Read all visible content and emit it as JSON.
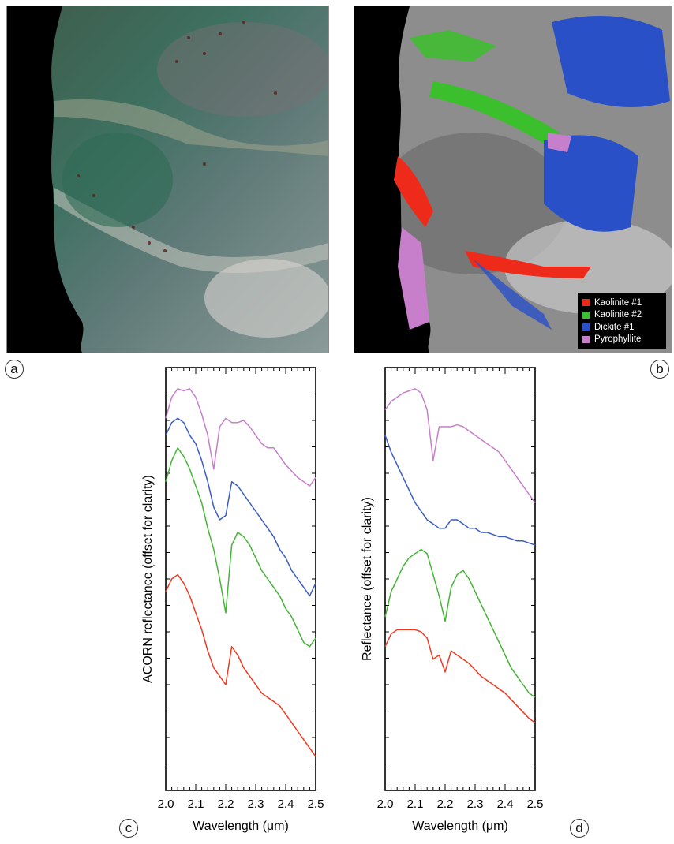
{
  "figure": {
    "panel_labels": [
      "a",
      "b",
      "c",
      "d"
    ],
    "legend": [
      {
        "label": "Kaolinite #1",
        "color": "#ee2a1b"
      },
      {
        "label": "Kaolinite #2",
        "color": "#3bbf2c"
      },
      {
        "label": "Dickite #1",
        "color": "#2a50c8"
      },
      {
        "label": "Pyrophyllite",
        "color": "#c77fcb"
      }
    ],
    "image_a": {
      "description_icon": "false-color-image"
    },
    "image_b": {
      "description_icon": "mineral-map-image"
    }
  },
  "chart_data": [
    {
      "type": "line",
      "panel": "c",
      "xlabel": "Wavelength (μm)",
      "ylabel": "ACORN reflectance (offset for clarity)",
      "xlim": [
        2.0,
        2.5
      ],
      "ylim": [
        0,
        100
      ],
      "x_ticks": [
        "2.0",
        "2.1",
        "2.2",
        "2.3",
        "2.4",
        "2.5"
      ],
      "grid": false,
      "series": [
        {
          "color": "#c77fcb",
          "x": [
            2.0,
            2.02,
            2.04,
            2.06,
            2.08,
            2.1,
            2.12,
            2.14,
            2.16,
            2.18,
            2.2,
            2.22,
            2.24,
            2.26,
            2.28,
            2.3,
            2.32,
            2.34,
            2.36,
            2.38,
            2.4,
            2.42,
            2.44,
            2.46,
            2.48,
            2.5
          ],
          "y": [
            88,
            93,
            95,
            94.5,
            95,
            93,
            89,
            84,
            76,
            86,
            88,
            87,
            87,
            87.5,
            86,
            84,
            82,
            81,
            81,
            79,
            77,
            75.5,
            74,
            73,
            72,
            74
          ]
        },
        {
          "color": "#3a5cc4",
          "x": [
            2.0,
            2.02,
            2.04,
            2.06,
            2.08,
            2.1,
            2.12,
            2.14,
            2.16,
            2.18,
            2.2,
            2.22,
            2.24,
            2.26,
            2.28,
            2.3,
            2.32,
            2.34,
            2.36,
            2.38,
            2.4,
            2.42,
            2.44,
            2.46,
            2.48,
            2.5
          ],
          "y": [
            84,
            87,
            88,
            87,
            84,
            82,
            78,
            73,
            67,
            64,
            65,
            73,
            72,
            70,
            68,
            66,
            64,
            62,
            60,
            57,
            55,
            52,
            50,
            48,
            46,
            49
          ]
        },
        {
          "color": "#44b536",
          "x": [
            2.0,
            2.02,
            2.04,
            2.06,
            2.08,
            2.1,
            2.12,
            2.14,
            2.16,
            2.18,
            2.2,
            2.22,
            2.24,
            2.26,
            2.28,
            2.3,
            2.32,
            2.34,
            2.36,
            2.38,
            2.4,
            2.42,
            2.44,
            2.46,
            2.48,
            2.5
          ],
          "y": [
            73,
            78,
            81,
            79,
            76,
            72,
            68,
            62,
            57,
            50,
            42,
            58,
            61,
            60,
            58,
            55,
            52,
            50,
            48,
            46,
            43,
            41,
            38,
            35,
            34,
            36
          ]
        },
        {
          "color": "#ee3a22",
          "x": [
            2.0,
            2.02,
            2.04,
            2.06,
            2.08,
            2.1,
            2.12,
            2.14,
            2.16,
            2.18,
            2.2,
            2.22,
            2.24,
            2.26,
            2.28,
            2.3,
            2.32,
            2.34,
            2.36,
            2.38,
            2.4,
            2.42,
            2.44,
            2.46,
            2.48,
            2.5
          ],
          "y": [
            47,
            50,
            51,
            49,
            46,
            42,
            38,
            33,
            29,
            27,
            25,
            34,
            32,
            29,
            27,
            25,
            23,
            22,
            21,
            20,
            18,
            16,
            14,
            12,
            10,
            8
          ]
        }
      ]
    },
    {
      "type": "line",
      "panel": "d",
      "xlabel": "Wavelength (μm)",
      "ylabel": "Reflectance (offset for clarity)",
      "xlim": [
        2.0,
        2.5
      ],
      "ylim": [
        0,
        100
      ],
      "x_ticks": [
        "2.0",
        "2.1",
        "2.2",
        "2.3",
        "2.4",
        "2.5"
      ],
      "grid": false,
      "series": [
        {
          "color": "#c77fcb",
          "x": [
            2.0,
            2.02,
            2.04,
            2.06,
            2.08,
            2.1,
            2.12,
            2.14,
            2.16,
            2.18,
            2.2,
            2.22,
            2.24,
            2.26,
            2.28,
            2.3,
            2.32,
            2.34,
            2.36,
            2.38,
            2.4,
            2.42,
            2.44,
            2.46,
            2.48,
            2.5
          ],
          "y": [
            90,
            92,
            93,
            94,
            94.5,
            95,
            94,
            90,
            78,
            86,
            86,
            86,
            86.5,
            86,
            85,
            84,
            83,
            82,
            81,
            80,
            78,
            76,
            74,
            72,
            70,
            68
          ]
        },
        {
          "color": "#3a5cc4",
          "x": [
            2.0,
            2.02,
            2.04,
            2.06,
            2.08,
            2.1,
            2.12,
            2.14,
            2.16,
            2.18,
            2.2,
            2.22,
            2.24,
            2.26,
            2.28,
            2.3,
            2.32,
            2.34,
            2.36,
            2.38,
            2.4,
            2.42,
            2.44,
            2.46,
            2.48,
            2.5
          ],
          "y": [
            84,
            80,
            77,
            74,
            71,
            68,
            66,
            64,
            63,
            62,
            62,
            64,
            64,
            63,
            62,
            62,
            61,
            61,
            60.5,
            60,
            60,
            59.5,
            59,
            59,
            58.5,
            58
          ]
        },
        {
          "color": "#44b536",
          "x": [
            2.0,
            2.02,
            2.04,
            2.06,
            2.08,
            2.1,
            2.12,
            2.14,
            2.16,
            2.18,
            2.2,
            2.22,
            2.24,
            2.26,
            2.28,
            2.3,
            2.32,
            2.34,
            2.36,
            2.38,
            2.4,
            2.42,
            2.44,
            2.46,
            2.48,
            2.5
          ],
          "y": [
            41,
            47,
            50,
            53,
            55,
            56,
            57,
            56,
            51,
            46,
            40,
            48,
            51,
            52,
            50,
            47,
            44,
            41,
            38,
            35,
            32,
            29,
            27,
            25,
            23,
            22
          ]
        },
        {
          "color": "#ee3a22",
          "x": [
            2.0,
            2.02,
            2.04,
            2.06,
            2.08,
            2.1,
            2.12,
            2.14,
            2.16,
            2.18,
            2.2,
            2.22,
            2.24,
            2.26,
            2.28,
            2.3,
            2.32,
            2.34,
            2.36,
            2.38,
            2.4,
            2.42,
            2.44,
            2.46,
            2.48,
            2.5
          ],
          "y": [
            34,
            37,
            38,
            38,
            38,
            38,
            37.5,
            36,
            31,
            32,
            28,
            33,
            32,
            31,
            30,
            28.5,
            27,
            26,
            25,
            24,
            23,
            21.5,
            20,
            18.5,
            17,
            16
          ]
        }
      ]
    }
  ]
}
